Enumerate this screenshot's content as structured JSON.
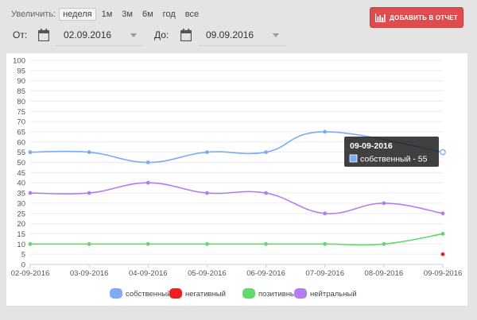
{
  "zoom": {
    "label": "Увеличить:",
    "options": [
      "неделя",
      "1м",
      "3м",
      "6м",
      "год",
      "все"
    ],
    "active": "неделя"
  },
  "add_button": {
    "label": "ДОБАВИТЬ В ОТЧЕТ",
    "icon": "bar-chart-icon"
  },
  "date_from": {
    "label": "От:",
    "value": "02.09.2016",
    "icon": "calendar-icon"
  },
  "date_to": {
    "label": "До:",
    "value": "09.09.2016",
    "icon": "calendar-icon"
  },
  "chart_data": {
    "type": "line",
    "categories": [
      "02-09-2016",
      "03-09-2016",
      "04-09-2016",
      "05-09-2016",
      "06-09-2016",
      "07-09-2016",
      "08-09-2016",
      "09-09-2016"
    ],
    "ylim": [
      0,
      100
    ],
    "yticks": [
      0,
      5,
      10,
      15,
      20,
      25,
      30,
      35,
      40,
      45,
      50,
      55,
      60,
      65,
      70,
      75,
      80,
      85,
      90,
      95,
      100
    ],
    "grid": true,
    "legend_position": "bottom",
    "series": [
      {
        "name": "собственный",
        "color": "#7cacf6",
        "values": [
          55,
          55,
          50,
          55,
          55,
          65,
          null,
          55
        ]
      },
      {
        "name": "негативный",
        "color": "#f02020",
        "values": [
          null,
          null,
          null,
          null,
          null,
          null,
          null,
          5
        ]
      },
      {
        "name": "позитивный",
        "color": "#62d96b",
        "values": [
          10,
          10,
          10,
          10,
          10,
          10,
          10,
          15
        ]
      },
      {
        "name": "нейтральный",
        "color": "#b57cf0",
        "values": [
          35,
          35,
          40,
          35,
          35,
          25,
          30,
          25
        ]
      }
    ],
    "tooltip": {
      "title": "09-09-2016",
      "series": "собственный",
      "text": "собственный -  55"
    }
  }
}
